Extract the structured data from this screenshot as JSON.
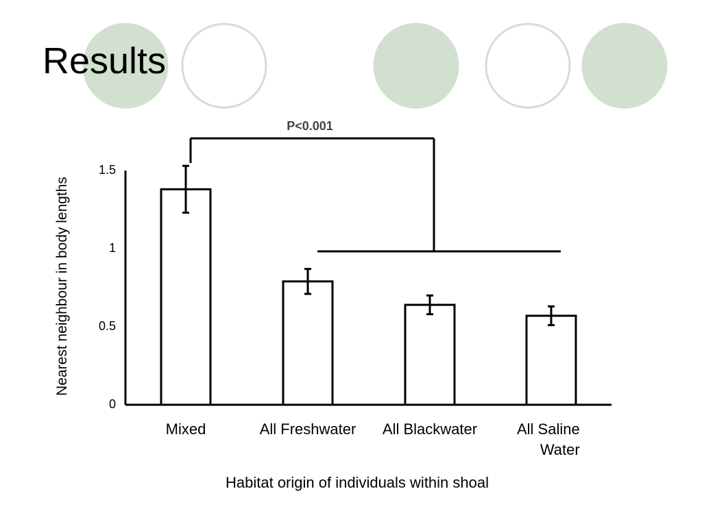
{
  "slide": {
    "title": "Results"
  },
  "decoration": {
    "circle_fill": "#d1e0cf",
    "circle_stroke": "#d1e0cf"
  },
  "chart_data": {
    "type": "bar",
    "categories": [
      "Mixed",
      "All Freshwater",
      "All Blackwater",
      "All Saline\nWater"
    ],
    "values": [
      1.38,
      0.79,
      0.64,
      0.57
    ],
    "errors": [
      0.15,
      0.08,
      0.06,
      0.06
    ],
    "xlabel": "Habitat origin of individuals within shoal",
    "ylabel": "Nearest neighbour in body lengths",
    "ylim": [
      0,
      1.5
    ],
    "yticks": [
      "0",
      "0.5",
      "1",
      "1.5"
    ],
    "annotation": {
      "text": "P<0.001",
      "compare": "Mixed vs All Freshwater, All Blackwater, All Saline Water"
    },
    "bar_fill": "#ffffff",
    "bar_stroke": "#000000"
  }
}
